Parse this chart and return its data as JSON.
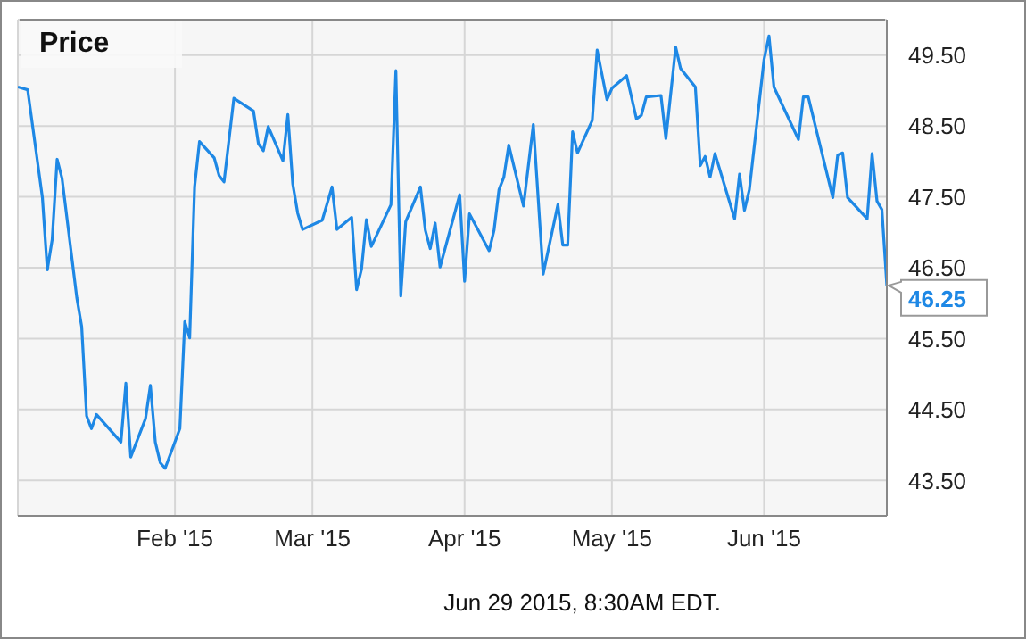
{
  "chart_data": {
    "type": "line",
    "title": "Price",
    "annotations": [
      "Jun 29 2015, 8:30AM EDT."
    ],
    "x": [
      "2014-12-31",
      "2015-01-02",
      "2015-01-05",
      "2015-01-06",
      "2015-01-07",
      "2015-01-08",
      "2015-01-09",
      "2015-01-12",
      "2015-01-13",
      "2015-01-14",
      "2015-01-15",
      "2015-01-16",
      "2015-01-21",
      "2015-01-22",
      "2015-01-23",
      "2015-01-26",
      "2015-01-27",
      "2015-01-28",
      "2015-01-29",
      "2015-01-30",
      "2015-02-02",
      "2015-02-03",
      "2015-02-04",
      "2015-02-05",
      "2015-02-06",
      "2015-02-09",
      "2015-02-10",
      "2015-02-11",
      "2015-02-13",
      "2015-02-17",
      "2015-02-18",
      "2015-02-19",
      "2015-02-20",
      "2015-02-23",
      "2015-02-24",
      "2015-02-25",
      "2015-02-26",
      "2015-02-27",
      "2015-03-03",
      "2015-03-05",
      "2015-03-06",
      "2015-03-09",
      "2015-03-10",
      "2015-03-11",
      "2015-03-12",
      "2015-03-13",
      "2015-03-17",
      "2015-03-18",
      "2015-03-19",
      "2015-03-20",
      "2015-03-23",
      "2015-03-24",
      "2015-03-25",
      "2015-03-26",
      "2015-03-27",
      "2015-03-31",
      "2015-04-01",
      "2015-04-02",
      "2015-04-06",
      "2015-04-07",
      "2015-04-08",
      "2015-04-09",
      "2015-04-10",
      "2015-04-13",
      "2015-04-15",
      "2015-04-17",
      "2015-04-20",
      "2015-04-21",
      "2015-04-22",
      "2015-04-23",
      "2015-04-24",
      "2015-04-27",
      "2015-04-28",
      "2015-04-30",
      "2015-05-01",
      "2015-05-04",
      "2015-05-06",
      "2015-05-07",
      "2015-05-08",
      "2015-05-11",
      "2015-05-12",
      "2015-05-14",
      "2015-05-15",
      "2015-05-18",
      "2015-05-19",
      "2015-05-20",
      "2015-05-21",
      "2015-05-22",
      "2015-05-26",
      "2015-05-27",
      "2015-05-28",
      "2015-05-29",
      "2015-06-01",
      "2015-06-02",
      "2015-06-03",
      "2015-06-08",
      "2015-06-09",
      "2015-06-10",
      "2015-06-15",
      "2015-06-16",
      "2015-06-17",
      "2015-06-18",
      "2015-06-22",
      "2015-06-23",
      "2015-06-24",
      "2015-06-25",
      "2015-06-26"
    ],
    "series": [
      {
        "color": "#1e88e5",
        "values": [
          49.05,
          49.01,
          47.49,
          46.47,
          46.9,
          48.03,
          47.76,
          46.08,
          45.67,
          44.41,
          44.23,
          44.43,
          44.04,
          44.87,
          43.83,
          44.37,
          44.84,
          44.04,
          43.75,
          43.67,
          44.23,
          45.74,
          45.51,
          47.64,
          48.28,
          48.05,
          47.8,
          47.71,
          48.89,
          48.71,
          48.25,
          48.15,
          48.49,
          48.01,
          48.66,
          47.68,
          47.27,
          47.04,
          47.17,
          47.64,
          47.04,
          47.21,
          46.19,
          46.48,
          47.18,
          46.8,
          47.39,
          49.28,
          46.1,
          47.15,
          47.64,
          47.03,
          46.77,
          47.13,
          46.51,
          47.53,
          46.31,
          47.26,
          46.74,
          47.03,
          47.6,
          47.78,
          48.23,
          47.37,
          48.52,
          46.41,
          47.39,
          46.82,
          46.82,
          48.42,
          48.12,
          48.58,
          49.57,
          48.87,
          49.03,
          49.21,
          48.6,
          48.65,
          48.91,
          48.93,
          48.32,
          49.61,
          49.31,
          49.05,
          47.94,
          48.07,
          47.78,
          48.11,
          47.19,
          47.82,
          47.31,
          47.6,
          49.44,
          49.77,
          49.05,
          48.31,
          48.91,
          48.91,
          47.49,
          48.09,
          48.12,
          47.49,
          47.19,
          48.11,
          47.44,
          47.32,
          46.25
        ],
        "value_labels": [
          null,
          null,
          null,
          null,
          null,
          null,
          null,
          null,
          null,
          null,
          null,
          null,
          null,
          null,
          null,
          null,
          null,
          null,
          null,
          null,
          null,
          null,
          null,
          null,
          null,
          null,
          null,
          null,
          null,
          null,
          null,
          null,
          null,
          null,
          null,
          null,
          null,
          null,
          null,
          null,
          null,
          null,
          null,
          null,
          null,
          null,
          null,
          null,
          null,
          null,
          null,
          null,
          null,
          null,
          null,
          null,
          null,
          null,
          null,
          null,
          null,
          null,
          null,
          null,
          null,
          null,
          null,
          null,
          null,
          null,
          null,
          null,
          null,
          null,
          null,
          null,
          null,
          null,
          null,
          null,
          null,
          null,
          null,
          null,
          null,
          null,
          null,
          null,
          null,
          null,
          null,
          null,
          null,
          null,
          null,
          null,
          null,
          null,
          null,
          null,
          null,
          null,
          null,
          null,
          null,
          null,
          "46.25"
        ]
      }
    ],
    "xlim": [
      "2014-12-31",
      "2015-06-26"
    ],
    "xticks": [
      {
        "value": "2015-02-01",
        "label": "Feb '15"
      },
      {
        "value": "2015-03-01",
        "label": "Mar '15"
      },
      {
        "value": "2015-04-01",
        "label": "Apr '15"
      },
      {
        "value": "2015-05-01",
        "label": "May '15"
      },
      {
        "value": "2015-06-01",
        "label": "Jun '15"
      }
    ],
    "ylim": [
      43,
      50
    ],
    "yticks": [
      {
        "value": 43.5,
        "label": "43.50"
      },
      {
        "value": 44.5,
        "label": "44.50"
      },
      {
        "value": 45.5,
        "label": "45.50"
      },
      {
        "value": 46.5,
        "label": "46.50"
      },
      {
        "value": 47.5,
        "label": "47.50"
      },
      {
        "value": 48.5,
        "label": "48.50"
      },
      {
        "value": 49.5,
        "label": "49.50"
      }
    ],
    "grid": true,
    "legend": false,
    "marker": "none",
    "line_style": "solid"
  }
}
